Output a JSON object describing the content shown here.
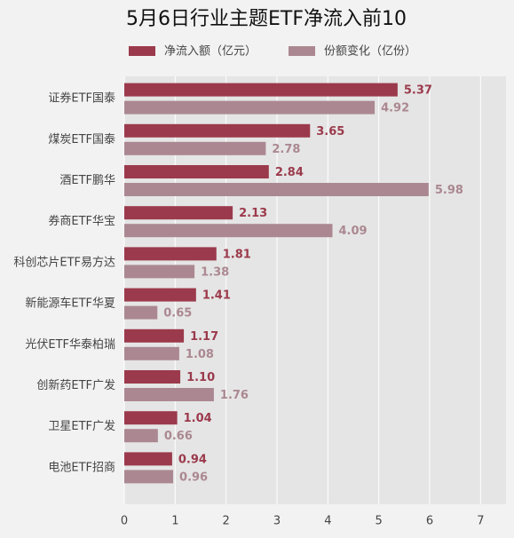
{
  "chart_data": {
    "type": "hbar",
    "title": "5月6日行业主题ETF净流入前10",
    "categories": [
      "证券ETF国泰",
      "煤炭ETF国泰",
      "酒ETF鹏华",
      "券商ETF华宝",
      "科创芯片ETF易方达",
      "新能源车ETF华夏",
      "光伏ETF华泰柏瑞",
      "创新药ETF广发",
      "卫星ETF广发",
      "电池ETF招商"
    ],
    "series": [
      {
        "name": "净流入额（亿元）",
        "color": "#9b3a4c",
        "values": [
          5.37,
          3.65,
          2.84,
          2.13,
          1.81,
          1.41,
          1.17,
          1.1,
          1.04,
          0.94
        ],
        "value_labels": [
          "5.37",
          "3.65",
          "2.84",
          "2.13",
          "1.81",
          "1.41",
          "1.17",
          "1.10",
          "1.04",
          "0.94"
        ]
      },
      {
        "name": "份额变化（亿份）",
        "color": "#ab8891",
        "values": [
          4.92,
          2.78,
          5.98,
          4.09,
          1.38,
          0.65,
          1.08,
          1.76,
          0.66,
          0.96
        ],
        "value_labels": [
          "4.92",
          "2.78",
          "5.98",
          "4.09",
          "1.38",
          "0.65",
          "1.08",
          "1.76",
          "0.66",
          "0.96"
        ]
      }
    ],
    "xlim": [
      0,
      7.5
    ],
    "xticks": [
      0,
      1,
      2,
      3,
      4,
      5,
      6,
      7
    ],
    "grid": true
  }
}
